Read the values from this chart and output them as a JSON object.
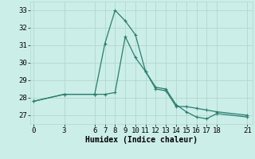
{
  "line1_x": [
    0,
    3,
    6,
    7,
    8,
    9,
    10,
    11,
    12,
    13,
    14,
    15,
    16,
    17,
    18,
    21
  ],
  "line1_y": [
    27.8,
    28.2,
    28.2,
    31.1,
    33.0,
    32.4,
    31.6,
    29.5,
    28.6,
    28.5,
    27.6,
    27.2,
    26.9,
    26.8,
    27.1,
    26.9
  ],
  "line2_x": [
    0,
    3,
    6,
    7,
    8,
    9,
    10,
    11,
    12,
    13,
    14,
    15,
    16,
    17,
    18,
    21
  ],
  "line2_y": [
    27.8,
    28.2,
    28.2,
    28.2,
    28.3,
    31.5,
    30.3,
    29.5,
    28.5,
    28.4,
    27.5,
    27.5,
    27.4,
    27.3,
    27.2,
    27.0
  ],
  "line_color": "#2a7d6f",
  "bg_color": "#cceee8",
  "grid_color": "#b0d8d0",
  "xlabel": "Humidex (Indice chaleur)",
  "xticks": [
    0,
    3,
    6,
    7,
    8,
    9,
    10,
    11,
    12,
    13,
    14,
    15,
    16,
    17,
    18,
    21
  ],
  "yticks": [
    27,
    28,
    29,
    30,
    31,
    32,
    33
  ],
  "ylim": [
    26.5,
    33.5
  ],
  "xlim": [
    -0.3,
    21.5
  ],
  "markersize": 2.5,
  "linewidth": 0.9,
  "xlabel_fontsize": 7,
  "tick_fontsize": 6.5
}
